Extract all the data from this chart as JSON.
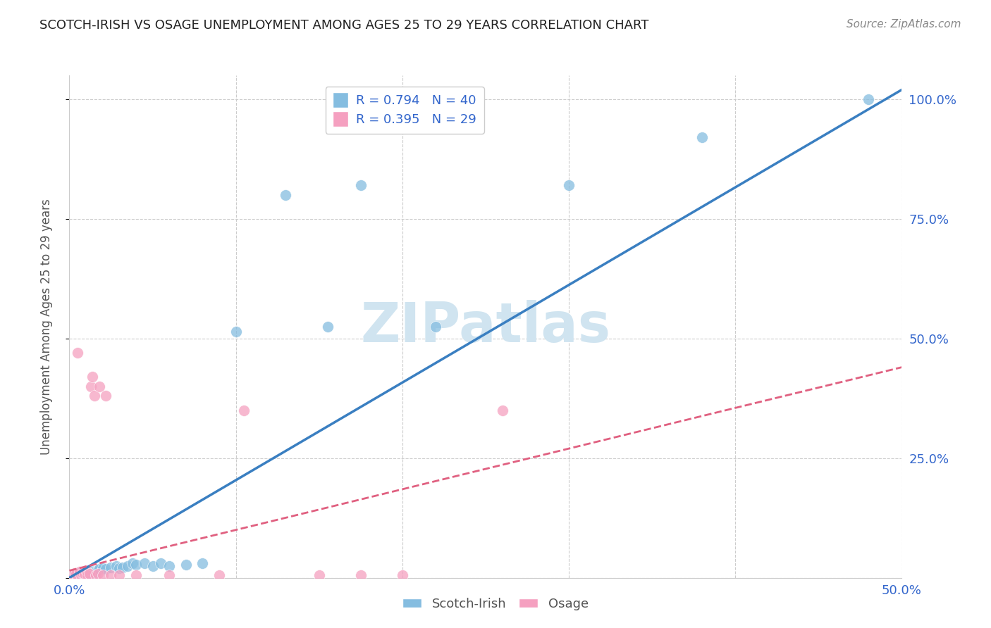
{
  "title": "SCOTCH-IRISH VS OSAGE UNEMPLOYMENT AMONG AGES 25 TO 29 YEARS CORRELATION CHART",
  "source": "Source: ZipAtlas.com",
  "ylabel": "Unemployment Among Ages 25 to 29 years",
  "xmin": 0.0,
  "xmax": 0.5,
  "ymin": 0.0,
  "ymax": 1.05,
  "r_blue": 0.794,
  "n_blue": 40,
  "r_pink": 0.395,
  "n_pink": 29,
  "blue_color": "#85bde0",
  "pink_color": "#f5a0c0",
  "line_blue_color": "#3a7fc1",
  "line_pink_color": "#e06080",
  "watermark_color": "#d0e4f0",
  "legend_text_color": "#3366cc",
  "blue_scatter": [
    [
      0.002,
      0.005
    ],
    [
      0.003,
      0.008
    ],
    [
      0.004,
      0.003
    ],
    [
      0.005,
      0.01
    ],
    [
      0.006,
      0.006
    ],
    [
      0.007,
      0.008
    ],
    [
      0.008,
      0.005
    ],
    [
      0.009,
      0.01
    ],
    [
      0.01,
      0.008
    ],
    [
      0.011,
      0.012
    ],
    [
      0.012,
      0.01
    ],
    [
      0.013,
      0.015
    ],
    [
      0.014,
      0.012
    ],
    [
      0.015,
      0.01
    ],
    [
      0.016,
      0.013
    ],
    [
      0.017,
      0.015
    ],
    [
      0.018,
      0.018
    ],
    [
      0.02,
      0.02
    ],
    [
      0.022,
      0.018
    ],
    [
      0.025,
      0.022
    ],
    [
      0.028,
      0.025
    ],
    [
      0.03,
      0.02
    ],
    [
      0.032,
      0.022
    ],
    [
      0.035,
      0.025
    ],
    [
      0.038,
      0.03
    ],
    [
      0.04,
      0.028
    ],
    [
      0.045,
      0.03
    ],
    [
      0.05,
      0.025
    ],
    [
      0.055,
      0.03
    ],
    [
      0.06,
      0.025
    ],
    [
      0.07,
      0.028
    ],
    [
      0.08,
      0.03
    ],
    [
      0.1,
      0.515
    ],
    [
      0.13,
      0.8
    ],
    [
      0.155,
      0.525
    ],
    [
      0.175,
      0.82
    ],
    [
      0.22,
      0.525
    ],
    [
      0.3,
      0.82
    ],
    [
      0.38,
      0.92
    ],
    [
      0.48,
      1.0
    ]
  ],
  "pink_scatter": [
    [
      0.002,
      0.005
    ],
    [
      0.003,
      0.01
    ],
    [
      0.004,
      0.008
    ],
    [
      0.005,
      0.47
    ],
    [
      0.006,
      0.012
    ],
    [
      0.007,
      0.005
    ],
    [
      0.008,
      0.01
    ],
    [
      0.009,
      0.008
    ],
    [
      0.01,
      0.015
    ],
    [
      0.011,
      0.005
    ],
    [
      0.012,
      0.008
    ],
    [
      0.013,
      0.4
    ],
    [
      0.014,
      0.42
    ],
    [
      0.015,
      0.38
    ],
    [
      0.016,
      0.005
    ],
    [
      0.017,
      0.008
    ],
    [
      0.018,
      0.4
    ],
    [
      0.02,
      0.005
    ],
    [
      0.022,
      0.38
    ],
    [
      0.025,
      0.005
    ],
    [
      0.03,
      0.005
    ],
    [
      0.04,
      0.005
    ],
    [
      0.06,
      0.005
    ],
    [
      0.09,
      0.005
    ],
    [
      0.105,
      0.35
    ],
    [
      0.15,
      0.005
    ],
    [
      0.175,
      0.005
    ],
    [
      0.2,
      0.005
    ],
    [
      0.26,
      0.35
    ]
  ],
  "blue_line_x": [
    0.0,
    0.5
  ],
  "blue_line_y": [
    0.0,
    1.02
  ],
  "pink_line_x": [
    0.0,
    0.5
  ],
  "pink_line_y": [
    0.015,
    0.44
  ]
}
